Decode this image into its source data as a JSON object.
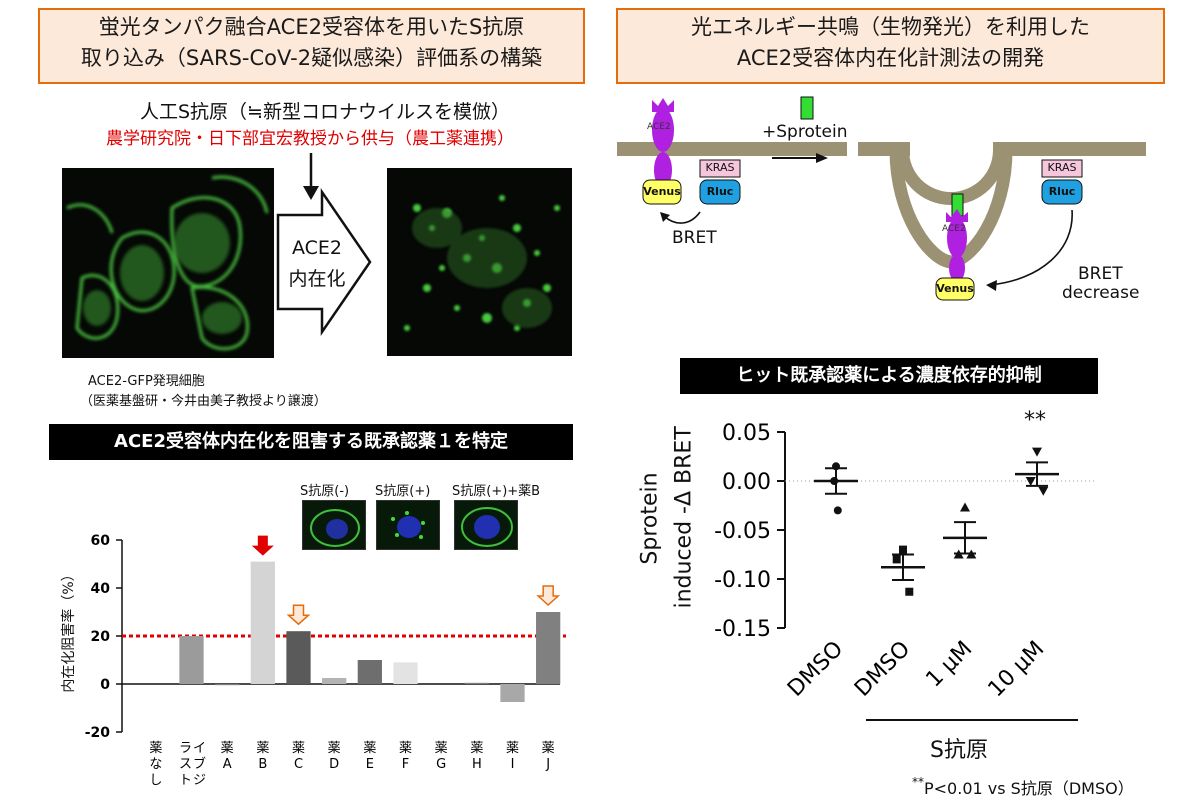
{
  "left_title": {
    "line1": "蛍光タンパク融合ACE2受容体を用いたS抗原",
    "line2": "取り込み（SARS-CoV-2疑似感染）評価系の構築"
  },
  "right_title": {
    "line1": "光エネルギー共鳴（生物発光）を利用した",
    "line2": "ACE2受容体内在化計測法の開発"
  },
  "antigen": {
    "heading": "人工S抗原（≒新型コロナウイルスを模倣）",
    "source": "農学研究院・日下部宜宏教授から供与（農工薬連携）",
    "arrow_line1": "ACE2",
    "arrow_line2": "内在化"
  },
  "cell_caption": {
    "line1": "ACE2-GFP発現細胞",
    "line2": "（医薬基盤研・今井由美子教授より譲渡）"
  },
  "left_banner": "ACE2受容体内在化を阻害する既承認薬１を特定",
  "right_banner": "ヒット既承認薬による濃度依存的抑制",
  "thumb_labels": [
    "S抗原(-)",
    "S抗原(+)",
    "S抗原(+)+薬B"
  ],
  "schematic": {
    "ace2": "ACE2",
    "venus": "Venus",
    "rluc": "Rluc",
    "kras": "KRAS",
    "sprotein": "+Sprotein",
    "bret": "BRET",
    "bret_decrease_1": "BRET",
    "bret_decrease_2": "decrease"
  },
  "colors": {
    "accent_orange": "#e46c0a",
    "title_fill": "#fde9d9",
    "threshold_red": "#e00000",
    "membrane": "#9b9274",
    "ace2_purple": "#b020e0",
    "venus_yellow": "#ffff66",
    "rluc_blue": "#1fa0e0",
    "kras_pink": "#f6c6dd",
    "sprotein_green": "#33dd33"
  },
  "chart_data": [
    {
      "type": "bar",
      "ylabel": "内在化阻害率（%）",
      "ylim": [
        -20,
        60
      ],
      "yticks": [
        -20,
        0,
        20,
        40,
        60
      ],
      "threshold": 20,
      "categories": [
        "薬なし",
        "ラスト イブジ",
        "薬A",
        "薬B",
        "薬C",
        "薬D",
        "薬E",
        "薬F",
        "薬G",
        "薬H",
        "薬I",
        "薬J"
      ],
      "tick_labels": [
        [
          "薬",
          "な",
          "し"
        ],
        [
          "ラ",
          "ス",
          "ト"
        ],
        [
          "薬",
          "A"
        ],
        [
          "薬",
          "B"
        ],
        [
          "薬",
          "C"
        ],
        [
          "薬",
          "D"
        ],
        [
          "薬",
          "E"
        ],
        [
          "薬",
          "F"
        ],
        [
          "薬",
          "G"
        ],
        [
          "薬",
          "H"
        ],
        [
          "薬",
          "I"
        ],
        [
          "薬",
          "J"
        ]
      ],
      "tick_labels_second_col": [
        null,
        [
          "イ",
          "ブ",
          "ジ"
        ],
        null,
        null,
        null,
        null,
        null,
        null,
        null,
        null,
        null,
        null
      ],
      "values": [
        0,
        20,
        -0.5,
        51,
        22,
        2.5,
        10,
        9,
        0,
        0.5,
        -7.5,
        30
      ],
      "bar_colors": [
        "#cccccc",
        "#9b9b9b",
        "#808080",
        "#d4d4d4",
        "#5a5a5a",
        "#b3b3b3",
        "#6e6e6e",
        "#e3e3e3",
        "#cccccc",
        "#7f7f7f",
        "#a8a8a8",
        "#808080"
      ],
      "highlight_red": [
        3
      ],
      "highlight_outline": [
        4,
        11
      ]
    },
    {
      "type": "scatter",
      "ylabel_line1": "Sprotein",
      "ylabel_line2": "induced -Δ BRET",
      "ylim": [
        -0.15,
        0.05
      ],
      "yticks": [
        "0.05",
        "0.00",
        "-0.05",
        "-0.10",
        "-0.15"
      ],
      "ytick_values": [
        0.05,
        0.0,
        -0.05,
        -0.1,
        -0.15
      ],
      "categories": [
        "DMSO",
        "DMSO",
        "1 μM",
        "10 μM"
      ],
      "group_label": "S抗原",
      "series": [
        {
          "points": [
            0.015,
            0.0,
            -0.03
          ],
          "mean": 0.0,
          "sem": 0.013,
          "marker": "circle"
        },
        {
          "points": [
            -0.07,
            -0.08,
            -0.113
          ],
          "mean": -0.088,
          "sem": 0.013,
          "marker": "square"
        },
        {
          "points": [
            -0.027,
            -0.075,
            -0.075
          ],
          "mean": -0.058,
          "sem": 0.016,
          "marker": "triangle"
        },
        {
          "points": [
            0.03,
            0.0,
            -0.01
          ],
          "mean": 0.007,
          "sem": 0.012,
          "marker": "triangle-down"
        }
      ],
      "significance": "**",
      "footnote": "P<0.01 vs S抗原（DMSO）",
      "footnote_stars": "**"
    }
  ]
}
